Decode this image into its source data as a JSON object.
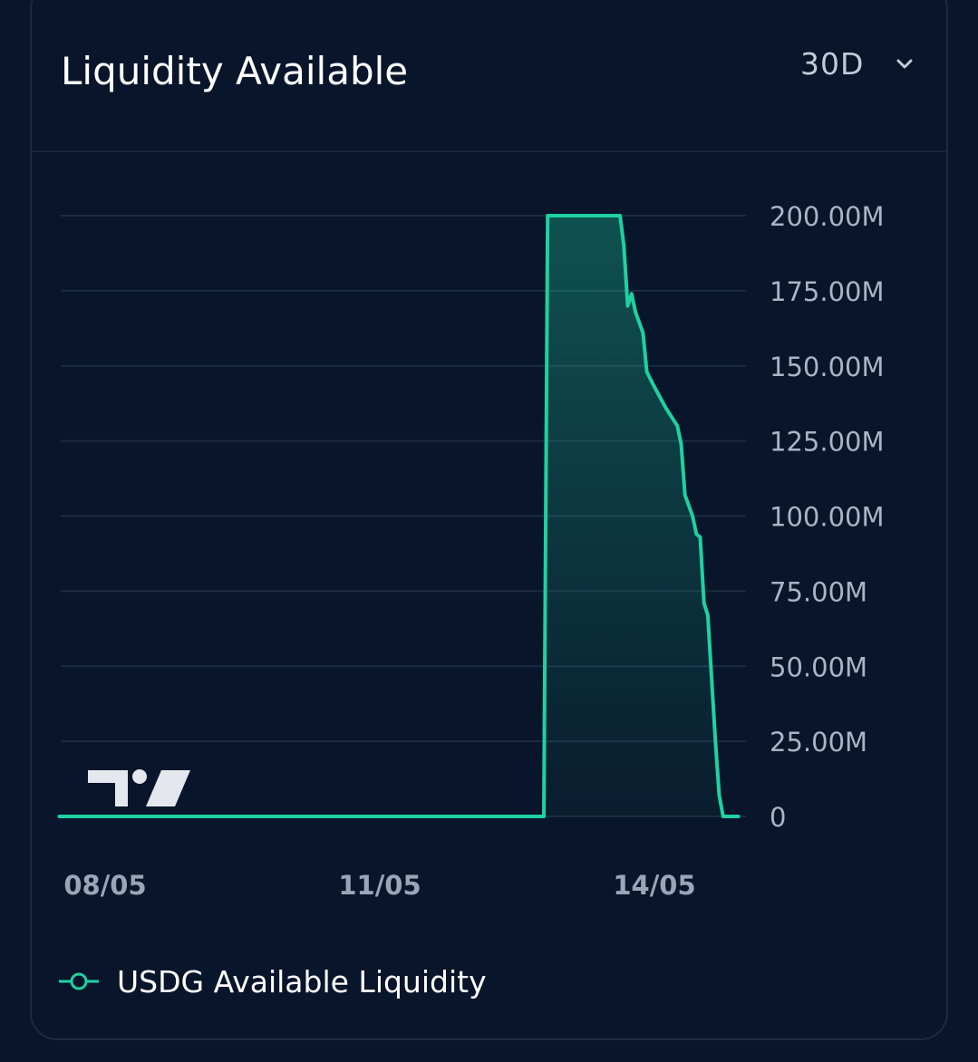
{
  "card": {
    "title": "Liquidity Available",
    "period": {
      "selected": "30D",
      "icon": "chevron-down-icon"
    }
  },
  "colors": {
    "background": "#08152a",
    "line": "#1fd1a1",
    "grid": "#1b2b41",
    "tick_text": "#aab4c4",
    "x_tick_text": "#9aa6b8"
  },
  "watermark": {
    "icon": "tradingview-logo-icon"
  },
  "chart_data": {
    "type": "area",
    "ylim": [
      0,
      200000000
    ],
    "y_ticks": [
      {
        "value": 200000000,
        "label": "200.00M"
      },
      {
        "value": 175000000,
        "label": "175.00M"
      },
      {
        "value": 150000000,
        "label": "150.00M"
      },
      {
        "value": 125000000,
        "label": "125.00M"
      },
      {
        "value": 100000000,
        "label": "100.00M"
      },
      {
        "value": 75000000,
        "label": "75.00M"
      },
      {
        "value": 50000000,
        "label": "50.00M"
      },
      {
        "value": 25000000,
        "label": "25.00M"
      },
      {
        "value": 0,
        "label": "0"
      }
    ],
    "x_ticks": [
      "08/05",
      "11/05",
      "14/05"
    ],
    "legend": "bottom-left",
    "grid": true,
    "series": [
      {
        "name": "USDG Available Liquidity",
        "points": [
          [
            "07/05 12:00",
            0
          ],
          [
            "08/05 00:00",
            0
          ],
          [
            "11/05 00:00",
            0
          ],
          [
            "12/05 19:00",
            0
          ],
          [
            "12/05 20:00",
            200000000
          ],
          [
            "13/05 15:00",
            200000000
          ],
          [
            "13/05 16:00",
            190000000
          ],
          [
            "13/05 17:00",
            170000000
          ],
          [
            "13/05 18:00",
            174000000
          ],
          [
            "13/05 19:00",
            168000000
          ],
          [
            "13/05 21:00",
            161000000
          ],
          [
            "13/05 22:00",
            148000000
          ],
          [
            "14/05 00:00",
            143000000
          ],
          [
            "14/05 03:00",
            136000000
          ],
          [
            "14/05 06:00",
            130000000
          ],
          [
            "14/05 07:00",
            124000000
          ],
          [
            "14/05 08:00",
            107000000
          ],
          [
            "14/05 10:00",
            100000000
          ],
          [
            "14/05 11:00",
            94000000
          ],
          [
            "14/05 12:00",
            93000000
          ],
          [
            "14/05 13:00",
            71000000
          ],
          [
            "14/05 14:00",
            67000000
          ],
          [
            "14/05 16:00",
            25000000
          ],
          [
            "14/05 17:00",
            7000000
          ],
          [
            "14/05 18:00",
            0
          ],
          [
            "14/05 22:00",
            0
          ]
        ]
      }
    ]
  }
}
